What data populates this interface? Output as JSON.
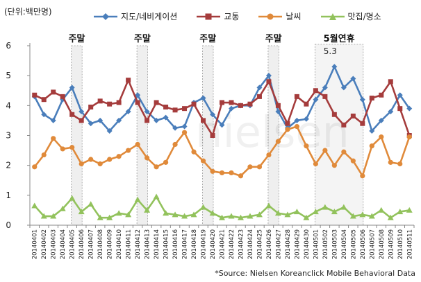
{
  "chart_data": {
    "type": "line",
    "unit_label": "(단위:백만명)",
    "x": [
      "20140401",
      "20140402",
      "20140403",
      "20140404",
      "20140405",
      "20140406",
      "20140407",
      "20140408",
      "20140409",
      "20140410",
      "20140411",
      "20140412",
      "20140413",
      "20140414",
      "20140415",
      "20140416",
      "20140417",
      "20140418",
      "20140419",
      "20140420",
      "20140421",
      "20140422",
      "20140423",
      "20140424",
      "20140425",
      "20140426",
      "20140427",
      "20140428",
      "20140429",
      "20140430",
      "20140501",
      "20140502",
      "20140503",
      "20140504",
      "20140505",
      "20140506",
      "20140507",
      "20140508",
      "20140509",
      "20140510",
      "20140511"
    ],
    "ylim": [
      0,
      6
    ],
    "yticks": [
      0,
      1,
      2,
      3,
      4,
      5,
      6
    ],
    "series": [
      {
        "name": "지도/네비게이션",
        "color": "#4a7ebb",
        "marker": "diamond",
        "values": [
          4.3,
          3.7,
          3.5,
          4.2,
          4.6,
          3.8,
          3.4,
          3.5,
          3.15,
          3.5,
          3.8,
          4.35,
          3.8,
          3.5,
          3.6,
          3.25,
          3.3,
          4.1,
          4.25,
          3.7,
          3.35,
          3.9,
          4.0,
          4.0,
          4.6,
          5.0,
          3.8,
          3.25,
          3.5,
          3.55,
          4.2,
          4.6,
          5.3,
          4.6,
          4.9,
          4.2,
          3.15,
          3.5,
          3.8,
          4.35,
          3.9
        ]
      },
      {
        "name": "교통",
        "color": "#a53c3c",
        "marker": "square",
        "values": [
          4.35,
          4.2,
          4.45,
          4.3,
          3.7,
          3.5,
          3.95,
          4.15,
          4.05,
          4.1,
          4.85,
          4.1,
          3.5,
          4.1,
          3.95,
          3.85,
          3.9,
          4.05,
          3.5,
          3.0,
          4.1,
          4.1,
          4.0,
          4.05,
          4.3,
          4.8,
          4.0,
          3.4,
          4.3,
          4.05,
          4.5,
          4.3,
          3.7,
          3.35,
          3.65,
          3.4,
          4.25,
          4.35,
          4.8,
          3.9,
          3.0
        ]
      },
      {
        "name": "날씨",
        "color": "#e08a3a",
        "marker": "circle",
        "values": [
          1.95,
          2.35,
          2.9,
          2.55,
          2.6,
          2.05,
          2.2,
          2.05,
          2.2,
          2.3,
          2.5,
          2.7,
          2.25,
          1.95,
          2.1,
          2.7,
          3.1,
          2.45,
          2.15,
          1.8,
          1.75,
          1.75,
          1.65,
          1.95,
          1.95,
          2.35,
          2.8,
          3.2,
          3.3,
          2.65,
          2.05,
          2.5,
          2.0,
          2.45,
          2.15,
          1.65,
          2.65,
          2.95,
          2.1,
          2.05,
          2.95
        ]
      },
      {
        "name": "맛집/명소",
        "color": "#92c25c",
        "marker": "triangle",
        "values": [
          0.65,
          0.3,
          0.3,
          0.55,
          0.9,
          0.45,
          0.7,
          0.25,
          0.25,
          0.4,
          0.35,
          0.85,
          0.5,
          0.95,
          0.4,
          0.35,
          0.3,
          0.35,
          0.6,
          0.4,
          0.25,
          0.3,
          0.25,
          0.3,
          0.35,
          0.65,
          0.4,
          0.35,
          0.45,
          0.25,
          0.45,
          0.6,
          0.45,
          0.6,
          0.3,
          0.35,
          0.3,
          0.5,
          0.25,
          0.45,
          0.5
        ]
      }
    ],
    "annotations": [
      {
        "label": "주말",
        "start": "20140405",
        "end": "20140406"
      },
      {
        "label": "주말",
        "start": "20140412",
        "end": "20140413"
      },
      {
        "label": "주말",
        "start": "20140419",
        "end": "20140420"
      },
      {
        "label": "주말",
        "start": "20140426",
        "end": "20140427"
      },
      {
        "label": "5월연휴",
        "start": "20140501",
        "end": "20140506"
      }
    ],
    "peak_label": {
      "text": "5.3",
      "x": "20140503",
      "value": 5.3
    },
    "source": "*Source: Nielsen Koreanclick Mobile Behavioral Data",
    "watermark": "nielsen"
  }
}
